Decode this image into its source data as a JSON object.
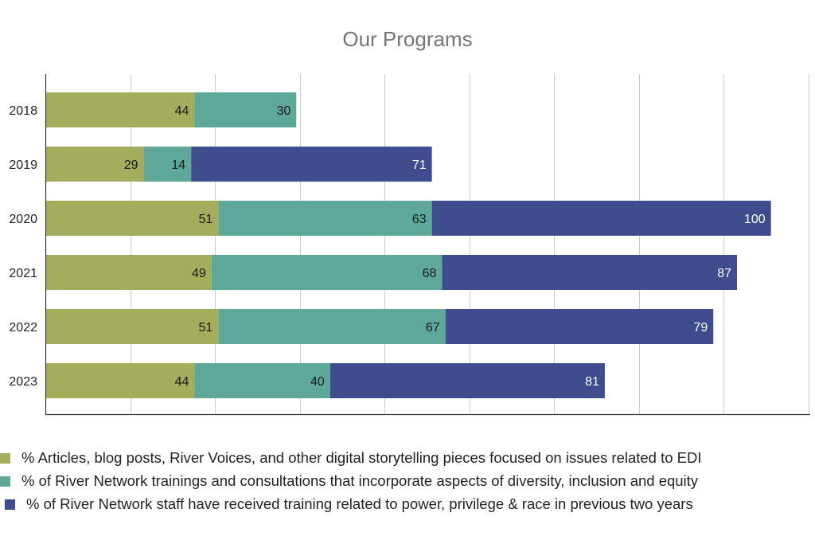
{
  "chart_data": {
    "type": "bar",
    "orientation": "horizontal",
    "stacked": true,
    "title": "Our Programs",
    "xlabel": "",
    "ylabel": "",
    "categories": [
      "2018",
      "2019",
      "2020",
      "2021",
      "2022",
      "2023"
    ],
    "series": [
      {
        "name": "% Articles, blog posts, River Voices, and other digital storytelling pieces focused on issues related to EDI",
        "color": "#a4ad5b",
        "values": [
          44,
          29,
          51,
          49,
          51,
          44
        ]
      },
      {
        "name": "% of River Network trainings and consultations that incorporate aspects of diversity, inclusion and equity",
        "color": "#5ea89a",
        "values": [
          30,
          14,
          63,
          68,
          67,
          40
        ]
      },
      {
        "name": "% of River Network staff have received training related to power, privilege & race in previous two years",
        "color": "#3f4d8f",
        "values": [
          null,
          71,
          100,
          87,
          79,
          81
        ]
      }
    ],
    "xlim": [
      0,
      225
    ],
    "grid": true,
    "legend_position": "bottom",
    "data_labels": true
  }
}
